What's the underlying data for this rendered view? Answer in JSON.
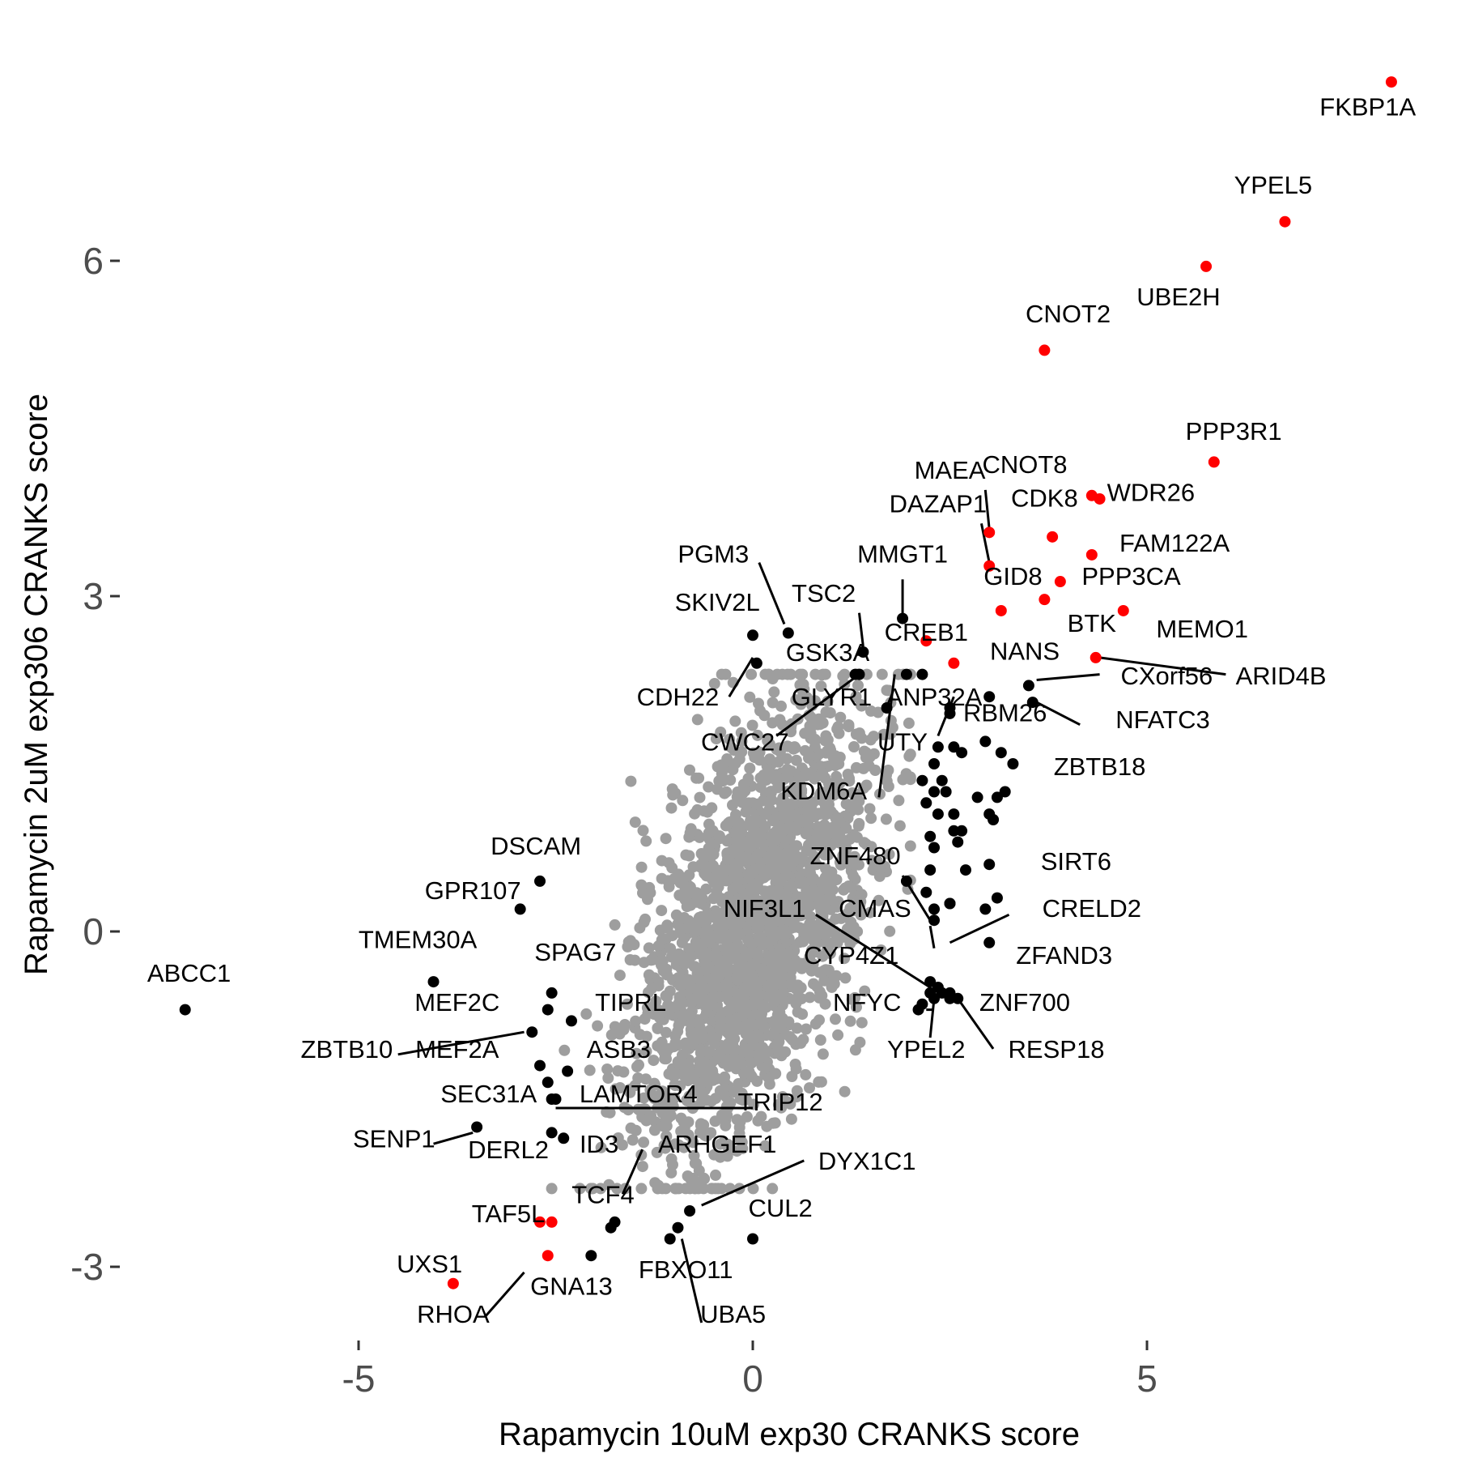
{
  "chart_data": {
    "type": "scatter",
    "title": "",
    "xlabel": "Rapamycin 10uM exp30 CRANKS score",
    "ylabel": "Rapamycin 2uM exp306 CRANKS score",
    "xlim": [
      -5.0,
      8.5
    ],
    "ylim": [
      -3.7,
      7.7
    ],
    "x_ticks": [
      -5,
      0,
      5
    ],
    "y_ticks": [
      -3,
      0,
      3,
      6
    ],
    "grid": false,
    "colors": {
      "background": "#ffffff",
      "gray_points": "#9e9e9e",
      "hit": "#000000",
      "highlight": "#ff0000",
      "tick_text": "#4d4d4d"
    },
    "background_points": {
      "description": "dense cloud of non-significant genes",
      "n": 2200,
      "seed": 7
    },
    "labeled_points": [
      {
        "gene": "FKBP1A",
        "x": 8.1,
        "y": 7.6,
        "color": "red"
      },
      {
        "gene": "YPEL5",
        "x": 6.75,
        "y": 6.35,
        "color": "red"
      },
      {
        "gene": "UBE2H",
        "x": 5.75,
        "y": 5.95,
        "color": "red"
      },
      {
        "gene": "CNOT2",
        "x": 3.7,
        "y": 5.2,
        "color": "red"
      },
      {
        "gene": "PPP3R1",
        "x": 5.85,
        "y": 4.2,
        "color": "red"
      },
      {
        "gene": "CNOT8",
        "x": 4.3,
        "y": 3.9,
        "color": "red"
      },
      {
        "gene": "WDR26",
        "x": 4.4,
        "y": 3.87,
        "color": "red"
      },
      {
        "gene": "MAEA",
        "x": 3.0,
        "y": 3.57,
        "color": "red"
      },
      {
        "gene": "CDK8",
        "x": 3.8,
        "y": 3.53,
        "color": "red"
      },
      {
        "gene": "DAZAP1",
        "x": 3.0,
        "y": 3.27,
        "color": "red"
      },
      {
        "gene": "FAM122A",
        "x": 4.3,
        "y": 3.37,
        "color": "red"
      },
      {
        "gene": "GID8",
        "x": 3.15,
        "y": 2.87,
        "color": "red"
      },
      {
        "gene": "PPP3CA",
        "x": 3.9,
        "y": 3.13,
        "color": "red"
      },
      {
        "gene": "BTK",
        "x": 3.7,
        "y": 2.97,
        "color": "red"
      },
      {
        "gene": "MEMO1",
        "x": 4.7,
        "y": 2.87,
        "color": "red"
      },
      {
        "gene": "CREB1",
        "x": 2.2,
        "y": 2.6,
        "color": "red"
      },
      {
        "gene": "NANS",
        "x": 2.55,
        "y": 2.4,
        "color": "red"
      },
      {
        "gene": "ARID4B",
        "x": 4.35,
        "y": 2.45,
        "color": "red"
      },
      {
        "gene": "TAF5L",
        "x": -2.55,
        "y": -2.6,
        "color": "red"
      },
      {
        "gene": "GNA13",
        "x": -2.6,
        "y": -2.9,
        "color": "red"
      },
      {
        "gene": "UXS1",
        "x": -3.8,
        "y": -3.15,
        "color": "red"
      },
      {
        "gene": "RHOA",
        "x": -2.7,
        "y": -2.6,
        "color": "red"
      },
      {
        "gene": "MMGT1",
        "x": 1.9,
        "y": 2.8,
        "color": "black"
      },
      {
        "gene": "PGM3",
        "x": 0.45,
        "y": 2.67,
        "color": "black"
      },
      {
        "gene": "SKIV2L",
        "x": 0.0,
        "y": 2.65,
        "color": "black"
      },
      {
        "gene": "TSC2",
        "x": 1.4,
        "y": 2.5,
        "color": "black"
      },
      {
        "gene": "GSK3A",
        "x": 0.05,
        "y": 2.4,
        "color": "black"
      },
      {
        "gene": "CDH22",
        "x": 1.35,
        "y": 2.3,
        "color": "black"
      },
      {
        "gene": "GLYR1",
        "x": 1.95,
        "y": 2.3,
        "color": "black"
      },
      {
        "gene": "ANP32A",
        "x": 2.15,
        "y": 2.3,
        "color": "black"
      },
      {
        "gene": "CWC27",
        "x": 1.3,
        "y": 2.3,
        "color": "black"
      },
      {
        "gene": "KDM6A",
        "x": 1.7,
        "y": 2.0,
        "color": "black"
      },
      {
        "gene": "UTY",
        "x": 2.5,
        "y": 2.0,
        "color": "black"
      },
      {
        "gene": "CXorf56",
        "x": 3.5,
        "y": 2.2,
        "color": "black"
      },
      {
        "gene": "NFATC3",
        "x": 3.55,
        "y": 2.05,
        "color": "black"
      },
      {
        "gene": "RBM26",
        "x": 3.0,
        "y": 2.1,
        "color": "black"
      },
      {
        "gene": "ZBTB18",
        "x": 3.2,
        "y": 1.25,
        "color": "black"
      },
      {
        "gene": "SIRT6",
        "x": 3.0,
        "y": 0.6,
        "color": "black"
      },
      {
        "gene": "ZNF480",
        "x": 2.25,
        "y": 0.55,
        "color": "black"
      },
      {
        "gene": "CREL D2",
        "x": 2.5,
        "y": 0.25,
        "color": "black"
      },
      {
        "gene": "CMAS",
        "x": 2.3,
        "y": 0.2,
        "color": "black"
      },
      {
        "gene": "NIF3L1",
        "x": 2.4,
        "y": -0.55,
        "color": "black"
      },
      {
        "gene": "ZFAND3",
        "x": 3.0,
        "y": -0.1,
        "color": "black"
      },
      {
        "gene": "CYP4Z1",
        "x": 2.25,
        "y": -0.55,
        "color": "black"
      },
      {
        "gene": "NFYC",
        "x": 2.1,
        "y": -0.7,
        "color": "black"
      },
      {
        "gene": "ZNF700",
        "x": 2.5,
        "y": -0.6,
        "color": "black"
      },
      {
        "gene": "YPEL2",
        "x": 2.3,
        "y": -0.6,
        "color": "black"
      },
      {
        "gene": "RESP18",
        "x": 2.6,
        "y": -0.6,
        "color": "black"
      },
      {
        "gene": "DSCAM",
        "x": -2.7,
        "y": 0.45,
        "color": "black"
      },
      {
        "gene": "GPR107",
        "x": -2.95,
        "y": 0.2,
        "color": "black"
      },
      {
        "gene": "TMEM30A",
        "x": -4.05,
        "y": -0.45,
        "color": "black"
      },
      {
        "gene": "ABCC1",
        "x": -7.2,
        "y": -0.7,
        "color": "black"
      },
      {
        "gene": "SPAG7",
        "x": -2.55,
        "y": -0.55,
        "color": "black"
      },
      {
        "gene": "MEF2C",
        "x": -2.6,
        "y": -0.7,
        "color": "black"
      },
      {
        "gene": "TIPRL",
        "x": -2.3,
        "y": -0.8,
        "color": "black"
      },
      {
        "gene": "ZBTB10",
        "x": -2.8,
        "y": -0.9,
        "color": "black"
      },
      {
        "gene": "MEF2A",
        "x": -2.7,
        "y": -1.2,
        "color": "black"
      },
      {
        "gene": "ASB3",
        "x": -2.35,
        "y": -1.25,
        "color": "black"
      },
      {
        "gene": "SEC31A",
        "x": -2.6,
        "y": -1.35,
        "color": "black"
      },
      {
        "gene": "LAMTOR4",
        "x": -2.5,
        "y": -1.5,
        "color": "black"
      },
      {
        "gene": "TRIP12",
        "x": -2.55,
        "y": -1.5,
        "color": "black"
      },
      {
        "gene": "SENP1",
        "x": -3.5,
        "y": -1.75,
        "color": "black"
      },
      {
        "gene": "DERL2",
        "x": -2.4,
        "y": -1.85,
        "color": "black"
      },
      {
        "gene": "ID3",
        "x": -2.55,
        "y": -1.8,
        "color": "black"
      },
      {
        "gene": "ARHGEF1",
        "x": -1.75,
        "y": -2.6,
        "color": "black"
      },
      {
        "gene": "TCF4",
        "x": -1.8,
        "y": -2.65,
        "color": "black"
      },
      {
        "gene": "DYX1C1",
        "x": -0.8,
        "y": -2.5,
        "color": "black"
      },
      {
        "gene": "CUL2",
        "x": 0.0,
        "y": -2.75,
        "color": "black"
      },
      {
        "gene": "FBXO11",
        "x": -1.05,
        "y": -2.75,
        "color": "black"
      },
      {
        "gene": "UBA5",
        "x": -0.95,
        "y": -2.65,
        "color": "black"
      },
      {
        "gene": "GNA13 pt2",
        "x": -2.05,
        "y": -2.9,
        "color": "black"
      }
    ],
    "extra_hit_points": [
      {
        "x": 2.5,
        "y": 1.95
      },
      {
        "x": 2.35,
        "y": 1.65
      },
      {
        "x": 2.55,
        "y": 1.65
      },
      {
        "x": 2.3,
        "y": 1.5
      },
      {
        "x": 2.4,
        "y": 1.35
      },
      {
        "x": 2.3,
        "y": 1.25
      },
      {
        "x": 2.45,
        "y": 1.25
      },
      {
        "x": 2.2,
        "y": 1.15
      },
      {
        "x": 2.35,
        "y": 1.05
      },
      {
        "x": 2.55,
        "y": 1.05
      },
      {
        "x": 2.25,
        "y": 0.85
      },
      {
        "x": 2.3,
        "y": 0.75
      },
      {
        "x": 2.55,
        "y": 0.9
      },
      {
        "x": 2.65,
        "y": 0.9
      },
      {
        "x": 2.6,
        "y": 0.8
      },
      {
        "x": 2.85,
        "y": 1.2
      },
      {
        "x": 3.0,
        "y": 1.05
      },
      {
        "x": 3.05,
        "y": 1.0
      },
      {
        "x": 3.1,
        "y": 1.2
      },
      {
        "x": 2.7,
        "y": 0.55
      },
      {
        "x": 3.1,
        "y": 0.3
      },
      {
        "x": 2.95,
        "y": 0.2
      },
      {
        "x": 2.5,
        "y": 0.25
      },
      {
        "x": 2.3,
        "y": 0.1
      },
      {
        "x": 2.25,
        "y": -0.45
      },
      {
        "x": 2.35,
        "y": -0.5
      },
      {
        "x": 2.5,
        "y": -0.55
      },
      {
        "x": 2.15,
        "y": -0.65
      },
      {
        "x": 3.15,
        "y": 1.6
      },
      {
        "x": 2.95,
        "y": 1.7
      },
      {
        "x": 2.65,
        "y": 1.6
      },
      {
        "x": 2.15,
        "y": 1.35
      },
      {
        "x": 3.3,
        "y": 1.5
      },
      {
        "x": 1.95,
        "y": 0.45
      },
      {
        "x": 2.2,
        "y": 0.35
      }
    ],
    "labels": [
      {
        "text": "FKBP1A",
        "x": 7.8,
        "y": 7.3
      },
      {
        "text": "YPEL5",
        "x": 6.6,
        "y": 6.6
      },
      {
        "text": "UBE2H",
        "x": 5.4,
        "y": 5.6
      },
      {
        "text": "CNOT2",
        "x": 4.0,
        "y": 5.45
      },
      {
        "text": "PPP3R1",
        "x": 6.1,
        "y": 4.4
      },
      {
        "text": "CNOT8",
        "x": 3.45,
        "y": 4.1
      },
      {
        "text": "WDR26",
        "x": 5.05,
        "y": 3.85
      },
      {
        "text": "MAEA",
        "x": 2.5,
        "y": 4.05
      },
      {
        "text": "CDK8",
        "x": 3.7,
        "y": 3.8
      },
      {
        "text": "DAZAP1",
        "x": 2.35,
        "y": 3.75
      },
      {
        "text": "FAM122A",
        "x": 5.35,
        "y": 3.4
      },
      {
        "text": "MMGT1",
        "x": 1.9,
        "y": 3.3
      },
      {
        "text": "GID8",
        "x": 3.3,
        "y": 3.1
      },
      {
        "text": "PPP3CA",
        "x": 4.8,
        "y": 3.1
      },
      {
        "text": "PGM3",
        "x": -0.5,
        "y": 3.3
      },
      {
        "text": "SKIV2L",
        "x": -0.45,
        "y": 2.87
      },
      {
        "text": "TSC2",
        "x": 0.9,
        "y": 2.95
      },
      {
        "text": "BTK",
        "x": 4.3,
        "y": 2.68
      },
      {
        "text": "MEMO1",
        "x": 5.7,
        "y": 2.63
      },
      {
        "text": "CREB1",
        "x": 2.2,
        "y": 2.6
      },
      {
        "text": "GSK3A",
        "x": 0.95,
        "y": 2.42
      },
      {
        "text": "NANS",
        "x": 3.45,
        "y": 2.43
      },
      {
        "text": "ARID4B",
        "x": 6.7,
        "y": 2.21
      },
      {
        "text": "CXorf56",
        "x": 5.25,
        "y": 2.21
      },
      {
        "text": "CDH22",
        "x": -0.95,
        "y": 2.02
      },
      {
        "text": "GLYR1",
        "x": 1.0,
        "y": 2.02
      },
      {
        "text": "ANP32A",
        "x": 2.3,
        "y": 2.02
      },
      {
        "text": "RBM26",
        "x": 3.2,
        "y": 1.88
      },
      {
        "text": "NFATC3",
        "x": 5.2,
        "y": 1.82
      },
      {
        "text": "CWC27",
        "x": -0.1,
        "y": 1.62
      },
      {
        "text": "UTY",
        "x": 1.9,
        "y": 1.62
      },
      {
        "text": "ZBTB18",
        "x": 4.4,
        "y": 1.4
      },
      {
        "text": "KDM6A",
        "x": 0.9,
        "y": 1.18
      },
      {
        "text": "DSCAM",
        "x": -2.75,
        "y": 0.69
      },
      {
        "text": "ZNF480",
        "x": 1.3,
        "y": 0.6
      },
      {
        "text": "SIRT6",
        "x": 4.1,
        "y": 0.55
      },
      {
        "text": "GPR107",
        "x": -3.55,
        "y": 0.29
      },
      {
        "text": "NIF3L1",
        "x": 0.15,
        "y": 0.13
      },
      {
        "text": "CMAS",
        "x": 1.55,
        "y": 0.13
      },
      {
        "text": "CRELD2",
        "x": 4.3,
        "y": 0.13
      },
      {
        "text": "TMEM30A",
        "x": -4.25,
        "y": -0.15
      },
      {
        "text": "CYP4Z1",
        "x": 1.25,
        "y": -0.29
      },
      {
        "text": "ZFAND3",
        "x": 3.95,
        "y": -0.29
      },
      {
        "text": "SPAG7",
        "x": -2.25,
        "y": -0.26
      },
      {
        "text": "ABCC1",
        "x": -7.15,
        "y": -0.45
      },
      {
        "text": "MEF2C",
        "x": -3.75,
        "y": -0.71
      },
      {
        "text": "TIPRL",
        "x": -1.55,
        "y": -0.71
      },
      {
        "text": "NFYC",
        "x": 1.45,
        "y": -0.71
      },
      {
        "text": "ZNF700",
        "x": 3.45,
        "y": -0.71
      },
      {
        "text": "ZBTB10",
        "x": -5.15,
        "y": -1.13
      },
      {
        "text": "MEF2A",
        "x": -3.75,
        "y": -1.13
      },
      {
        "text": "ASB3",
        "x": -1.7,
        "y": -1.13
      },
      {
        "text": "YPEL2",
        "x": 2.2,
        "y": -1.13
      },
      {
        "text": "RESP18",
        "x": 3.85,
        "y": -1.13
      },
      {
        "text": "SEC31A",
        "x": -3.35,
        "y": -1.53
      },
      {
        "text": "LAMTOR4",
        "x": -1.45,
        "y": -1.53
      },
      {
        "text": "TRIP12",
        "x": 0.35,
        "y": -1.6
      },
      {
        "text": "SENP1",
        "x": -4.55,
        "y": -1.93
      },
      {
        "text": "DERL2",
        "x": -3.1,
        "y": -2.03
      },
      {
        "text": "ID3",
        "x": -1.95,
        "y": -1.98
      },
      {
        "text": "ARHGEF1",
        "x": -0.45,
        "y": -1.98
      },
      {
        "text": "DYX1C1",
        "x": 1.45,
        "y": -2.13
      },
      {
        "text": "TCF4",
        "x": -1.9,
        "y": -2.43
      },
      {
        "text": "CUL2",
        "x": 0.35,
        "y": -2.55
      },
      {
        "text": "TAF5L",
        "x": -3.1,
        "y": -2.6
      },
      {
        "text": "UXS1",
        "x": -4.1,
        "y": -3.05
      },
      {
        "text": "FBXO11",
        "x": -0.85,
        "y": -3.1
      },
      {
        "text": "GNA13",
        "x": -2.3,
        "y": -3.25
      },
      {
        "text": "RHOA",
        "x": -3.8,
        "y": -3.5
      },
      {
        "text": "UBA5",
        "x": -0.25,
        "y": -3.5
      }
    ],
    "leader_lines": [
      [
        2.95,
        3.95,
        3.0,
        3.6
      ],
      [
        2.9,
        3.65,
        3.0,
        3.3
      ],
      [
        1.9,
        3.15,
        1.9,
        2.83
      ],
      [
        0.08,
        3.3,
        0.4,
        2.75
      ],
      [
        1.35,
        2.85,
        1.4,
        2.55
      ],
      [
        -0.3,
        2.1,
        0.0,
        2.45
      ],
      [
        0.3,
        1.75,
        1.35,
        2.3
      ],
      [
        1.6,
        1.2,
        1.8,
        2.3
      ],
      [
        2.35,
        1.75,
        2.55,
        2.1
      ],
      [
        4.4,
        2.3,
        3.6,
        2.25
      ],
      [
        4.15,
        1.85,
        3.6,
        2.05
      ],
      [
        6.0,
        2.3,
        4.4,
        2.45
      ],
      [
        1.9,
        0.5,
        2.25,
        0.1
      ],
      [
        0.8,
        0.15,
        2.25,
        -0.5
      ],
      [
        2.25,
        0.05,
        2.3,
        -0.15
      ],
      [
        3.25,
        0.15,
        2.5,
        -0.1
      ],
      [
        2.3,
        -0.7,
        2.2,
        -0.7
      ],
      [
        2.25,
        -0.95,
        2.3,
        -0.6
      ],
      [
        3.05,
        -1.05,
        2.6,
        -0.6
      ],
      [
        -4.5,
        -1.1,
        -2.9,
        -0.9
      ],
      [
        -2.5,
        -1.58,
        0.0,
        -1.58
      ],
      [
        -4.05,
        -1.9,
        -3.55,
        -1.8
      ],
      [
        -1.65,
        -2.35,
        -1.4,
        -1.95
      ],
      [
        -0.65,
        -2.45,
        0.65,
        -2.05
      ],
      [
        -0.65,
        -3.5,
        -0.9,
        -2.75
      ],
      [
        -3.4,
        -3.45,
        -2.9,
        -3.05
      ]
    ]
  }
}
